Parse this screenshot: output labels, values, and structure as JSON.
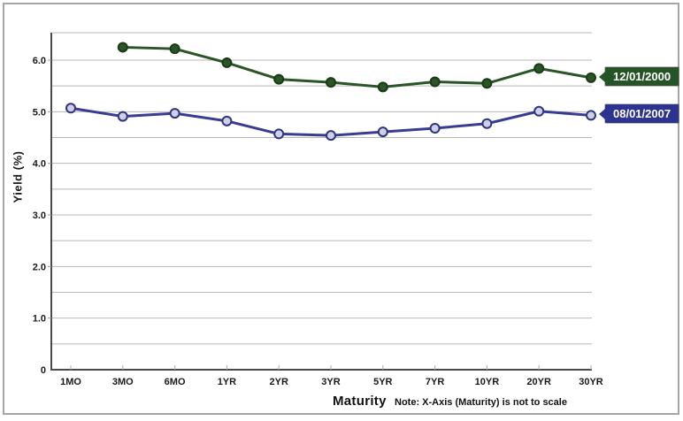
{
  "chart_data": {
    "type": "line",
    "title": "",
    "xlabel": "Maturity",
    "ylabel": "Yield (%)",
    "note": "Note: X-Axis (Maturity) is not to scale",
    "categories": [
      "1MO",
      "3MO",
      "6MO",
      "1YR",
      "2YR",
      "3YR",
      "5YR",
      "7YR",
      "10YR",
      "20YR",
      "30YR"
    ],
    "y_ticks": [
      0,
      1.0,
      2.0,
      3.0,
      4.0,
      5.0,
      6.0
    ],
    "y_minor_step": 0.5,
    "ylim": [
      0,
      6.5
    ],
    "grid": "horizontal lines every 0.5",
    "legend_position": "right-side callout flags pointing at last data point",
    "series": [
      {
        "name": "12/01/2000",
        "color": "#2a5527",
        "marker_fill": "#2a5527",
        "marker_stroke": "#1b3a16",
        "values": [
          null,
          6.25,
          6.22,
          5.95,
          5.63,
          5.57,
          5.48,
          5.58,
          5.55,
          5.84,
          5.66
        ]
      },
      {
        "name": "08/01/2007",
        "color": "#383c92",
        "marker_fill": "#cfd0e4",
        "marker_stroke": "#2f3380",
        "values": [
          5.07,
          4.91,
          4.97,
          4.82,
          4.57,
          4.54,
          4.61,
          4.68,
          4.77,
          5.01,
          4.93
        ]
      }
    ],
    "colors": {
      "gridline": "#b8b8b8",
      "axis": "#4a4a4a",
      "tick_label": "#1a1a1a",
      "callout_green_bg": "#275427",
      "callout_blue_bg": "#2d3490",
      "outer_border": "#a5a5a5"
    }
  }
}
